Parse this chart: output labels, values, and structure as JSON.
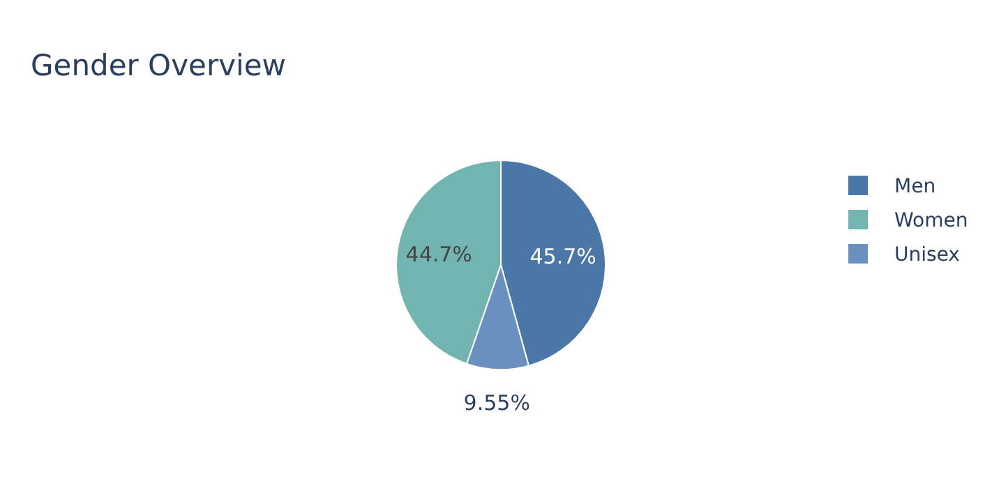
{
  "chart_data": {
    "type": "pie",
    "title": "Gender Overview",
    "categories": [
      "Men",
      "Women",
      "Unisex"
    ],
    "values": [
      45.7,
      44.7,
      9.55
    ],
    "colors": [
      "#4a76a8",
      "#72b5b0",
      "#6a90bf"
    ],
    "value_labels": [
      "45.7%",
      "44.7%",
      "9.55%"
    ],
    "legend": "right"
  }
}
